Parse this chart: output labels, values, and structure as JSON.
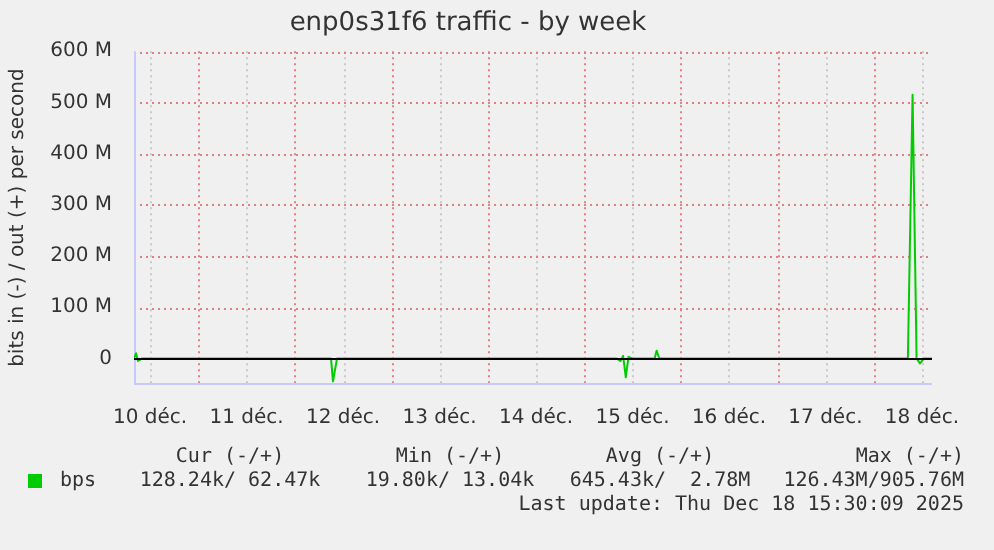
{
  "chart_data": {
    "type": "line",
    "title": "enp0s31f6 traffic - by week",
    "ylabel": "bits in (-) / out (+) per second",
    "x": [
      "2025-12-10T08:00",
      "2025-12-10T08:30",
      "2025-12-10T09:00",
      "2025-12-10T10:00",
      "2025-12-12T09:00",
      "2025-12-12T09:30",
      "2025-12-12T10:30",
      "2025-12-15T08:00",
      "2025-12-15T09:00",
      "2025-12-15T09:40",
      "2025-12-15T10:20",
      "2025-12-15T11:00",
      "2025-12-15T12:00",
      "2025-12-15T17:30",
      "2025-12-15T18:00",
      "2025-12-15T18:40",
      "2025-12-18T08:30",
      "2025-12-18T09:40",
      "2025-12-18T10:40",
      "2025-12-18T11:30",
      "2025-12-18T12:30",
      "2025-12-18T14:30"
    ],
    "series": [
      {
        "name": "bps",
        "color": "#00cc00",
        "values": [
          0,
          10,
          -5,
          0,
          0,
          -45,
          0,
          0,
          -5,
          5,
          -37,
          3,
          0,
          0,
          15,
          0,
          0,
          515,
          0,
          -10,
          0,
          0
        ]
      }
    ],
    "xlim": [
      "2025-12-10T08:00",
      "2025-12-18T14:30"
    ],
    "xticks": [
      {
        "value": "2025-12-10T12:00",
        "label": "10 déc."
      },
      {
        "value": "2025-12-11T00:00",
        "label": null
      },
      {
        "value": "2025-12-11T12:00",
        "label": "11 déc."
      },
      {
        "value": "2025-12-12T00:00",
        "label": null
      },
      {
        "value": "2025-12-12T12:00",
        "label": "12 déc."
      },
      {
        "value": "2025-12-13T00:00",
        "label": null
      },
      {
        "value": "2025-12-13T12:00",
        "label": "13 déc."
      },
      {
        "value": "2025-12-14T00:00",
        "label": null
      },
      {
        "value": "2025-12-14T12:00",
        "label": "14 déc."
      },
      {
        "value": "2025-12-15T00:00",
        "label": null
      },
      {
        "value": "2025-12-15T12:00",
        "label": "15 déc."
      },
      {
        "value": "2025-12-16T00:00",
        "label": null
      },
      {
        "value": "2025-12-16T12:00",
        "label": "16 déc."
      },
      {
        "value": "2025-12-17T00:00",
        "label": null
      },
      {
        "value": "2025-12-17T12:00",
        "label": "17 déc."
      },
      {
        "value": "2025-12-18T00:00",
        "label": null
      },
      {
        "value": "2025-12-18T12:00",
        "label": "18 déc."
      }
    ],
    "ylim": [
      -50,
      600
    ],
    "yticks": [
      {
        "value": 0,
        "label": "0"
      },
      {
        "value": 100,
        "label": "100 M"
      },
      {
        "value": 200,
        "label": "200 M"
      },
      {
        "value": 300,
        "label": "300 M"
      },
      {
        "value": 400,
        "label": "400 M"
      },
      {
        "value": 500,
        "label": "500 M"
      },
      {
        "value": 600,
        "label": "600 M"
      }
    ],
    "grid": true,
    "legend": "bottom left",
    "marker": "none",
    "line_style": "solid",
    "ref_lines": [
      {
        "axis": "y",
        "value": 0,
        "color": "#000000"
      }
    ],
    "annotations": [
      "Cur (-/+)",
      "Min (-/+)",
      "Avg (-/+)",
      "Max (-/+)",
      "128.24k/ 62.47k",
      "19.80k/ 13.04k",
      "645.43k/  2.78M",
      "126.43M/905.76M",
      "Last update: Thu Dec 18 15:30:09 2025"
    ]
  }
}
